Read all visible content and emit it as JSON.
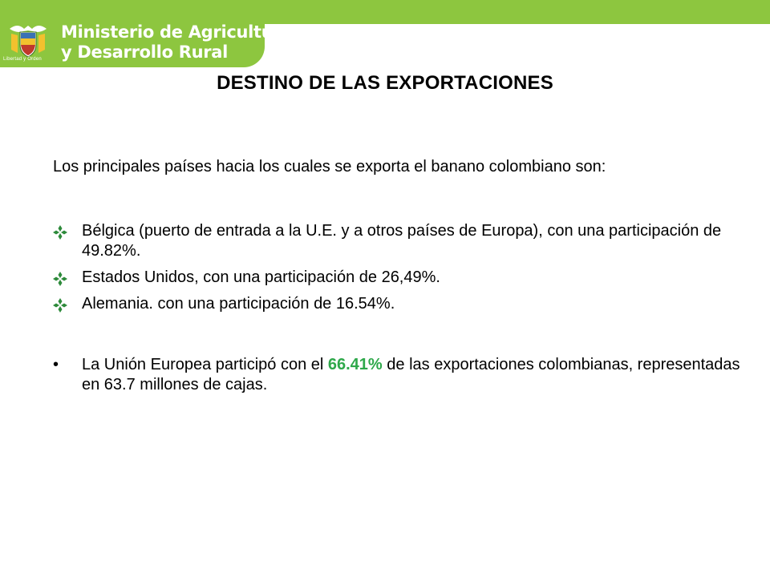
{
  "header": {
    "ministry_line1": "Ministerio de Agricultura",
    "ministry_line2": "y Desarrollo Rural",
    "crest_caption": "Libertad y Orden",
    "band_color": "#8dc63f"
  },
  "slide": {
    "title": "DESTINO DE LAS EXPORTACIONES",
    "intro": "Los principales países hacia los cuales se exporta el banano colombiano son:",
    "bullets": [
      {
        "text": "Bélgica (puerto de entrada a la U.E. y a otros países de Europa), con una participación de 49.82%."
      },
      {
        "text": "Estados Unidos, con una participación de 26,49%."
      },
      {
        "text": "Alemania. con una participación de 16.54%."
      }
    ],
    "eu_note": {
      "before": "La Unión Europea participó con el ",
      "highlight": "66.41%",
      "after": " de las exportaciones colombianas, representadas en 63.7 millones de cajas.",
      "highlight_color": "#2ea84a"
    },
    "bullet_glyph": "❖",
    "dot_glyph": "•"
  }
}
